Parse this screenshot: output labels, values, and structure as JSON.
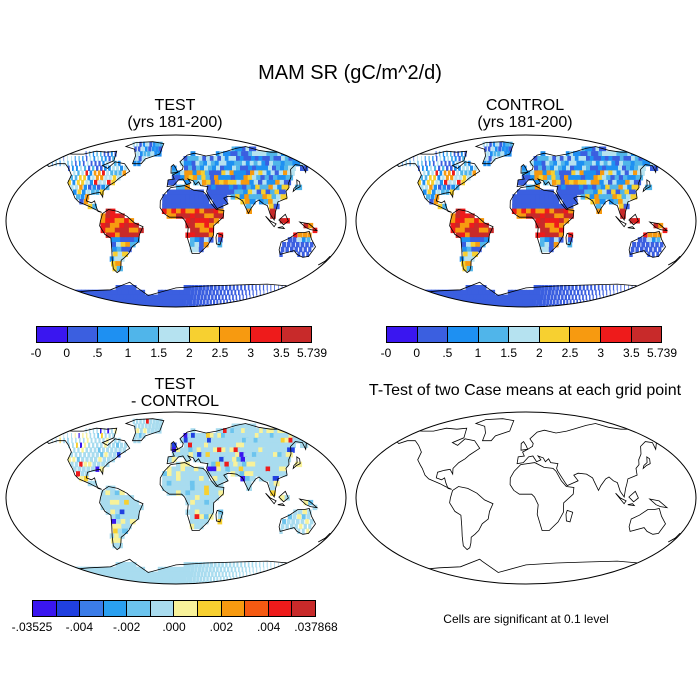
{
  "title": "MAM SR (gC/m^2/d)",
  "panels": {
    "test": {
      "line1": "TEST",
      "line2": "(yrs 181-200)"
    },
    "control": {
      "line1": "CONTROL",
      "line2": "(yrs 181-200)"
    },
    "diff": {
      "line1": "TEST",
      "line2": "- CONTROL"
    },
    "ttest": {
      "line1": "T-Test of two Case means at each grid point"
    }
  },
  "colorbar_main": {
    "colors": [
      "#3a16f0",
      "#3b5fe0",
      "#1e90f2",
      "#50b5ea",
      "#b5e2f0",
      "#f7d030",
      "#f79a10",
      "#ee1b1b",
      "#c82a2a"
    ],
    "labels": [
      "-0",
      "0",
      ".5",
      "1",
      "1.5",
      "2",
      "2.5",
      "3",
      "3.5",
      "5.739"
    ]
  },
  "colorbar_diff": {
    "colors": [
      "#3a16f0",
      "#2040e0",
      "#3b7ce8",
      "#2aa0f0",
      "#6cc4ee",
      "#a9dcef",
      "#f8f29a",
      "#f7d030",
      "#f79a10",
      "#f55a12",
      "#ee1b1b",
      "#c82a2a"
    ],
    "labels": [
      "-.03525",
      "-.004",
      "-.002",
      ".000",
      ".002",
      ".004",
      ".037868"
    ]
  },
  "note": "Cells are significant at 0.1 level",
  "legend_icons": [
    "map-land-fill",
    "map-coastline"
  ]
}
